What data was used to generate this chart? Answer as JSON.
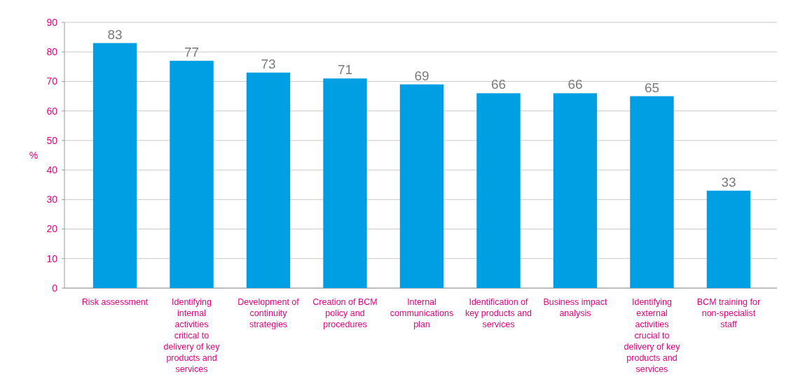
{
  "chart_data": {
    "type": "bar",
    "ylabel": "%",
    "categories": [
      "Risk assessment",
      "Identifying internal activities critical to delivery of key products and services",
      "Development of continuity strategies",
      "Creation of BCM policy and procedures",
      "Internal communications plan",
      "Identification of key products and services",
      "Business impact analysis",
      "Identifying external activities crucial to delivery of key products and services",
      "BCM training for non-specialist staff"
    ],
    "values": [
      83,
      77,
      73,
      71,
      69,
      66,
      66,
      65,
      33
    ],
    "color": "#009fe3",
    "data_labels": true,
    "ylim": [
      0,
      90
    ],
    "yticks": [
      0,
      10,
      20,
      30,
      40,
      50,
      60,
      70,
      80,
      90
    ],
    "grid": "y"
  }
}
